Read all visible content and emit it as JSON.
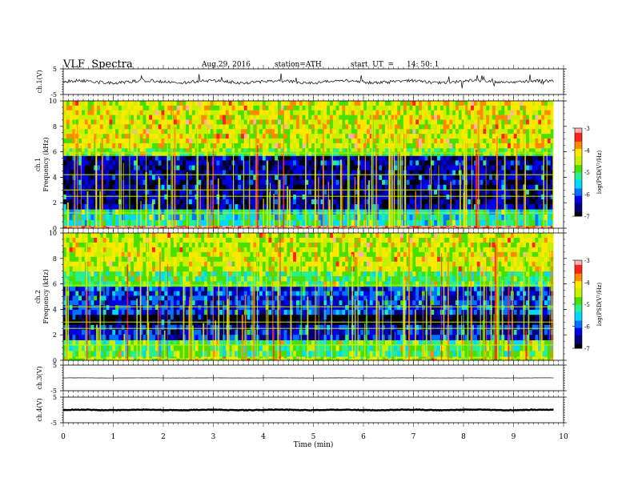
{
  "header": {
    "title": "VLF  Spectra",
    "date": "Aug.29, 2016",
    "station": "station=ATH",
    "start_label": "start  UT  =",
    "start_time": "14: 50: 1"
  },
  "colors": {
    "colormap": [
      "#000000",
      "#00007a",
      "#0000e6",
      "#0072ff",
      "#00d8ff",
      "#28f090",
      "#48e000",
      "#c8f000",
      "#ffe800",
      "#ff8a00",
      "#ff2020",
      "#ffb0b0",
      "#ffffff"
    ]
  },
  "chart_data": [
    {
      "type": "line",
      "panel": "ch1-waveform",
      "ylabel": "ch.1(V)",
      "ylim": [
        -5,
        5
      ],
      "yticks": [
        "5",
        "-5"
      ],
      "xlim": [
        0,
        10
      ],
      "x_end": 9.8,
      "trace_level": 0,
      "trace_noise": 1.2
    },
    {
      "type": "heatmap",
      "panel": "ch1-spectrogram",
      "ylabel": "ch.1",
      "ylabel2": "Frequency  (kHz)",
      "ylim": [
        0,
        10
      ],
      "yticks": [
        "0",
        "2",
        "4",
        "6",
        "8",
        "10"
      ],
      "xlim": [
        0,
        10
      ],
      "x_end": 9.8,
      "colorbar": {
        "label": "log(PSD(V²/Hz)",
        "range": [
          -7,
          -3
        ],
        "ticks": [
          "-3",
          "-4",
          "-5",
          "-6",
          "-7"
        ]
      },
      "bands_khz": [
        {
          "from": 0,
          "to": 0.2,
          "level": -3.2
        },
        {
          "from": 0.2,
          "to": 1.5,
          "level": -5.3
        },
        {
          "from": 1.5,
          "to": 5.7,
          "level": -6.6
        },
        {
          "from": 5.7,
          "to": 6.3,
          "level": -4.8
        },
        {
          "from": 6.3,
          "to": 10,
          "level": -4.3
        }
      ]
    },
    {
      "type": "heatmap",
      "panel": "ch2-spectrogram",
      "ylabel": "ch.2",
      "ylabel2": "Frequency  (kHz)",
      "ylim": [
        0,
        10
      ],
      "yticks": [
        "0",
        "2",
        "4",
        "6",
        "8",
        "10"
      ],
      "xlim": [
        0,
        10
      ],
      "x_end": 9.8,
      "colorbar": {
        "label": "log(PSD(V²/Hz)",
        "range": [
          -7,
          -3
        ],
        "ticks": [
          "-3",
          "-4",
          "-5",
          "-6",
          "-7"
        ]
      },
      "bands_khz": [
        {
          "from": 0,
          "to": 0.3,
          "level": -4.5
        },
        {
          "from": 0.3,
          "to": 1.6,
          "level": -5.0
        },
        {
          "from": 1.6,
          "to": 2.8,
          "level": -6.3
        },
        {
          "from": 2.8,
          "to": 3.6,
          "level": -7.0
        },
        {
          "from": 3.6,
          "to": 5.8,
          "level": -6.2
        },
        {
          "from": 5.8,
          "to": 7.0,
          "level": -5.0
        },
        {
          "from": 7.0,
          "to": 10,
          "level": -4.4
        }
      ]
    },
    {
      "type": "line",
      "panel": "ch3-waveform",
      "ylabel": "ch.3(V)",
      "ylim": [
        -5,
        5
      ],
      "yticks": [
        "5",
        "-5"
      ],
      "xlim": [
        0,
        10
      ],
      "x_end": 9.8,
      "trace_level": 0,
      "trace_noise": 0.05
    },
    {
      "type": "line",
      "panel": "ch4-waveform",
      "ylabel": "ch.4(V)",
      "ylim": [
        -5,
        5
      ],
      "yticks": [
        "5",
        "-5"
      ],
      "xlim": [
        0,
        10
      ],
      "x_end": 9.8,
      "trace_level": 0,
      "trace_noise": 0.25
    }
  ],
  "xaxis": {
    "label": "Time  (min)",
    "ticks": [
      "0",
      "1",
      "2",
      "3",
      "4",
      "5",
      "6",
      "7",
      "8",
      "9",
      "10"
    ]
  }
}
